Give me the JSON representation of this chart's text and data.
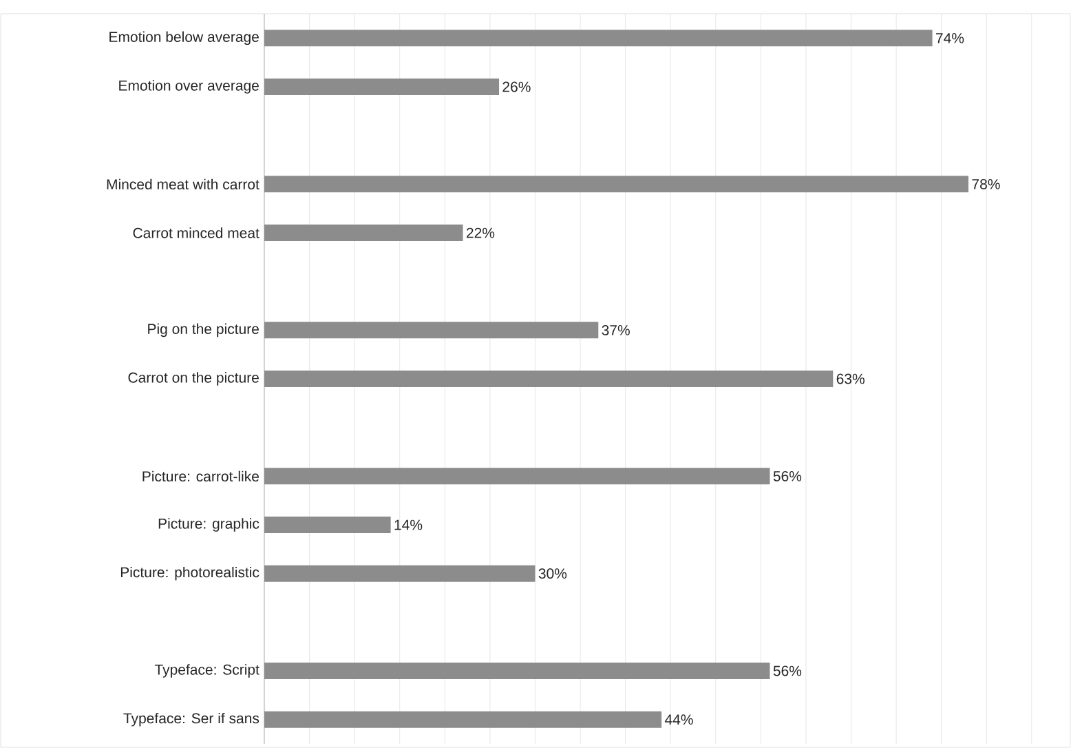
{
  "chart_data": {
    "type": "bar",
    "orientation": "horizontal",
    "categories": [
      "Emotion below average",
      "Emotion over average",
      null,
      "Minced meat with carrot",
      "Carrot minced meat",
      null,
      "Pig on the picture",
      "Carrot on the picture",
      null,
      "Picture: carrot-like",
      "Picture: graphic",
      "Picture: photorealistic",
      null,
      "Typeface: Script",
      "Typeface: Ser if sans"
    ],
    "values": [
      74,
      26,
      null,
      78,
      22,
      null,
      37,
      63,
      null,
      56,
      14,
      30,
      null,
      56,
      44
    ],
    "value_labels": [
      "74%",
      "26%",
      null,
      "78%",
      "22%",
      null,
      "37%",
      "63%",
      null,
      "56%",
      "14%",
      "30%",
      null,
      "56%",
      "44%"
    ],
    "color": "#8c8c8c",
    "tick_labels": "y",
    "grid": "x"
  }
}
